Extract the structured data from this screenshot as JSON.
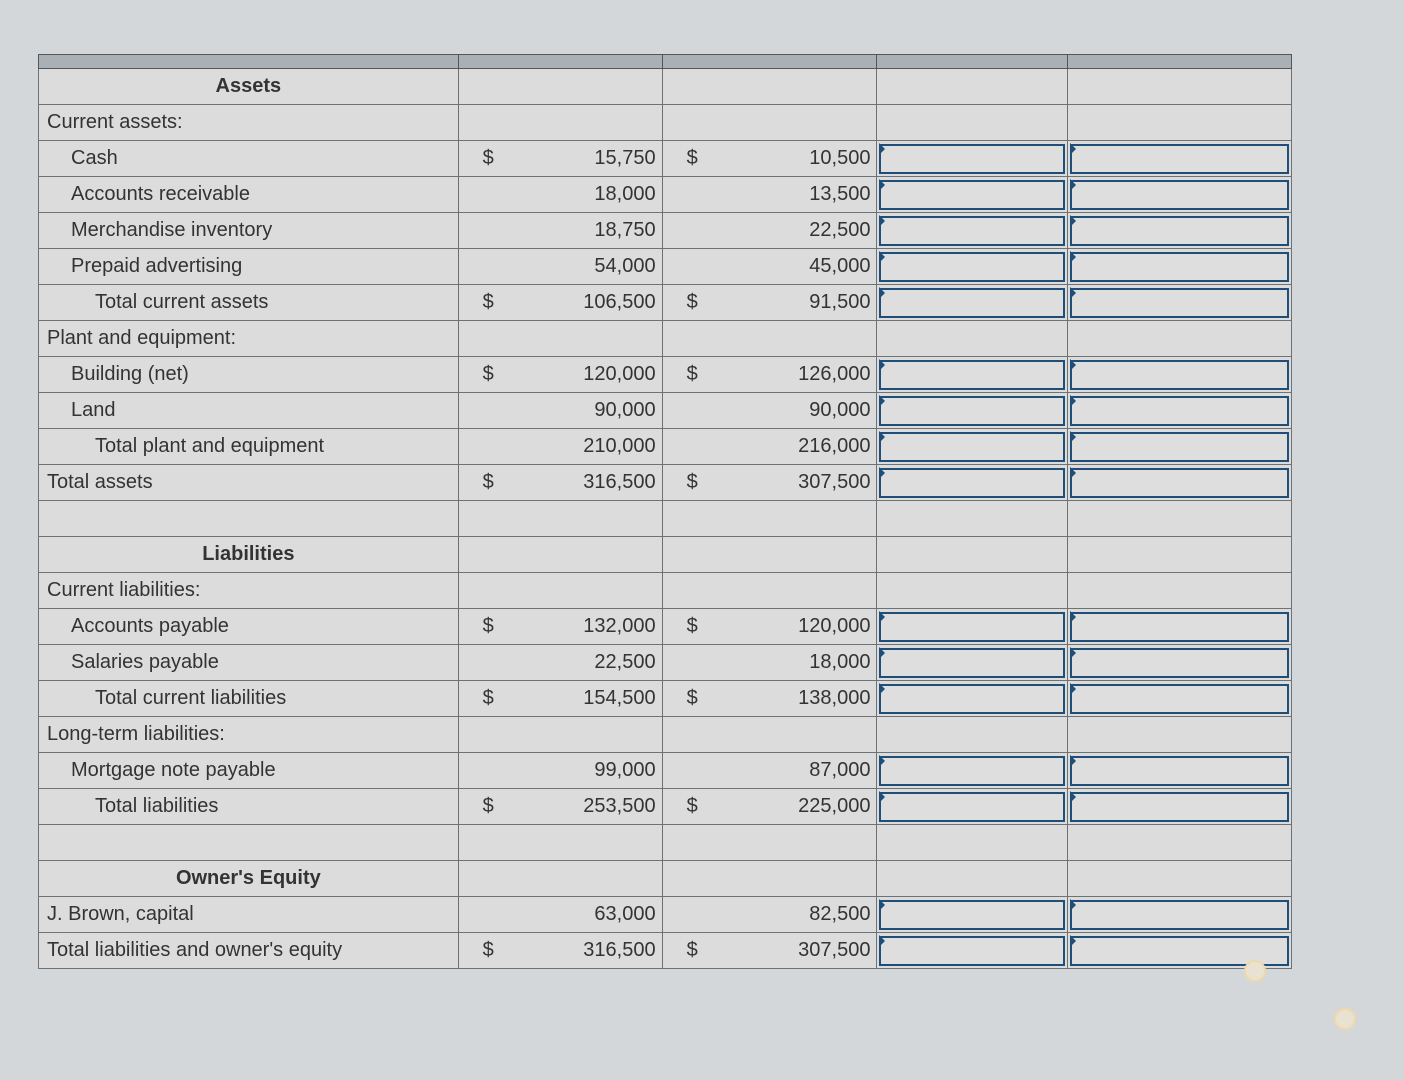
{
  "columns": [
    "",
    "",
    "",
    "",
    ""
  ],
  "rows": [
    {
      "label": "Assets",
      "type": "heading"
    },
    {
      "label": "Current assets:",
      "indent": 0
    },
    {
      "label": "Cash",
      "indent": 1,
      "s1": "$",
      "v1": "15,750",
      "s2": "$",
      "v2": "10,500",
      "inputs": true
    },
    {
      "label": "Accounts receivable",
      "indent": 1,
      "v1": "18,000",
      "v2": "13,500",
      "inputs": true
    },
    {
      "label": "Merchandise inventory",
      "indent": 1,
      "v1": "18,750",
      "v2": "22,500",
      "inputs": true
    },
    {
      "label": "Prepaid advertising",
      "indent": 1,
      "v1": "54,000",
      "v2": "45,000",
      "inputs": true
    },
    {
      "label": "Total current assets",
      "indent": 2,
      "s1": "$",
      "v1": "106,500",
      "s2": "$",
      "v2": "91,500",
      "inputs": true
    },
    {
      "label": "Plant and equipment:",
      "indent": 0
    },
    {
      "label": "Building (net)",
      "indent": 1,
      "s1": "$",
      "v1": "120,000",
      "s2": "$",
      "v2": "126,000",
      "inputs": true
    },
    {
      "label": "Land",
      "indent": 1,
      "v1": "90,000",
      "v2": "90,000",
      "inputs": true
    },
    {
      "label": "Total plant and equipment",
      "indent": 2,
      "v1": "210,000",
      "v2": "216,000",
      "inputs": true
    },
    {
      "label": "Total assets",
      "indent": 0,
      "s1": "$",
      "v1": "316,500",
      "s2": "$",
      "v2": "307,500",
      "inputs": true
    },
    {
      "label": "",
      "indent": 0
    },
    {
      "label": "Liabilities",
      "type": "heading"
    },
    {
      "label": "Current liabilities:",
      "indent": 0
    },
    {
      "label": "Accounts payable",
      "indent": 1,
      "s1": "$",
      "v1": "132,000",
      "s2": "$",
      "v2": "120,000",
      "inputs": true
    },
    {
      "label": "Salaries payable",
      "indent": 1,
      "v1": "22,500",
      "v2": "18,000",
      "inputs": true
    },
    {
      "label": "Total current liabilities",
      "indent": 2,
      "s1": "$",
      "v1": "154,500",
      "s2": "$",
      "v2": "138,000",
      "inputs": true
    },
    {
      "label": "Long-term liabilities:",
      "indent": 0
    },
    {
      "label": "Mortgage note payable",
      "indent": 1,
      "v1": "99,000",
      "v2": "87,000",
      "inputs": true
    },
    {
      "label": "Total liabilities",
      "indent": 2,
      "s1": "$",
      "v1": "253,500",
      "s2": "$",
      "v2": "225,000",
      "inputs": true
    },
    {
      "label": "",
      "indent": 0
    },
    {
      "label": "Owner's Equity",
      "type": "heading"
    },
    {
      "label": "J. Brown, capital",
      "indent": 0,
      "v1": "63,000",
      "v2": "82,500",
      "inputs": true
    },
    {
      "label": "Total liabilities and owner's equity",
      "indent": 0,
      "s1": "$",
      "v1": "316,500",
      "s2": "$",
      "v2": "307,500",
      "inputs": true
    }
  ],
  "colors": {
    "input_border": "#1f4e79",
    "header": "#a9b0b6",
    "cell": "#dcdcdc"
  }
}
